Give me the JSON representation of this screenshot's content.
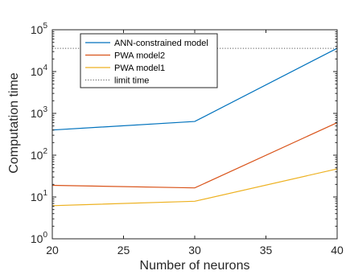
{
  "chart_data": {
    "type": "line",
    "x": [
      20,
      30,
      40
    ],
    "series": [
      {
        "name": "ANN-constrained model",
        "values": [
          400,
          640,
          36000
        ],
        "color": "#0072BD",
        "style": "solid"
      },
      {
        "name": "PWA model2",
        "values": [
          19,
          16.5,
          600
        ],
        "color": "#D95319",
        "style": "solid"
      },
      {
        "name": "PWA model1",
        "values": [
          6.2,
          7.9,
          47
        ],
        "color": "#EDB120",
        "style": "solid"
      },
      {
        "name": "limit time",
        "values": [
          36000,
          36000,
          36000
        ],
        "color": "#555555",
        "style": "dotted"
      }
    ],
    "xlabel": "Number of neurons",
    "ylabel": "Computation time",
    "xlim": [
      20,
      40
    ],
    "ylim": [
      1,
      100000
    ],
    "yscale": "log",
    "xticks": [
      "20",
      "25",
      "30",
      "35",
      "40"
    ],
    "yticks": [
      {
        "value": 1,
        "base": "10",
        "exp": "0"
      },
      {
        "value": 10,
        "base": "10",
        "exp": "1"
      },
      {
        "value": 100,
        "base": "10",
        "exp": "2"
      },
      {
        "value": 1000,
        "base": "10",
        "exp": "3"
      },
      {
        "value": 10000,
        "base": "10",
        "exp": "4"
      },
      {
        "value": 100000,
        "base": "10",
        "exp": "5"
      }
    ],
    "grid": false,
    "legend_position": "top-left"
  }
}
